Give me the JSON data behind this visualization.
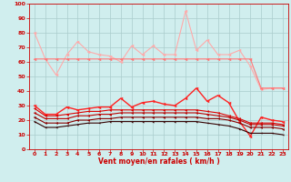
{
  "x": [
    0,
    1,
    2,
    3,
    4,
    5,
    6,
    7,
    8,
    9,
    10,
    11,
    12,
    13,
    14,
    15,
    16,
    17,
    18,
    19,
    20,
    21,
    22,
    23
  ],
  "series": [
    {
      "name": "max_gust",
      "color": "#ffaaaa",
      "linewidth": 0.8,
      "markersize": 2.5,
      "values": [
        80,
        62,
        51,
        65,
        74,
        67,
        65,
        64,
        60,
        71,
        65,
        71,
        65,
        65,
        95,
        68,
        75,
        65,
        65,
        68,
        57,
        41,
        42,
        42
      ]
    },
    {
      "name": "p90_gust",
      "color": "#ff7777",
      "linewidth": 0.8,
      "markersize": 2.5,
      "values": [
        62,
        62,
        62,
        62,
        62,
        62,
        62,
        62,
        62,
        62,
        62,
        62,
        62,
        62,
        62,
        62,
        62,
        62,
        62,
        62,
        62,
        42,
        42,
        42
      ]
    },
    {
      "name": "mean_gust",
      "color": "#ff2222",
      "linewidth": 1.0,
      "markersize": 2.5,
      "values": [
        30,
        24,
        24,
        29,
        27,
        28,
        29,
        29,
        35,
        29,
        32,
        33,
        31,
        30,
        35,
        42,
        33,
        37,
        32,
        19,
        9,
        22,
        20,
        19
      ]
    },
    {
      "name": "p90_wind",
      "color": "#dd0000",
      "linewidth": 0.8,
      "markersize": 2.0,
      "values": [
        28,
        23,
        23,
        24,
        25,
        26,
        26,
        27,
        27,
        27,
        27,
        27,
        27,
        27,
        27,
        27,
        26,
        25,
        23,
        21,
        18,
        18,
        18,
        17
      ]
    },
    {
      "name": "mean_wind",
      "color": "#bb0000",
      "linewidth": 0.8,
      "markersize": 2.0,
      "values": [
        25,
        21,
        21,
        21,
        23,
        23,
        24,
        24,
        25,
        25,
        25,
        25,
        25,
        25,
        25,
        25,
        24,
        23,
        22,
        20,
        17,
        17,
        17,
        16
      ]
    },
    {
      "name": "p10_wind",
      "color": "#880000",
      "linewidth": 0.8,
      "markersize": 2.0,
      "values": [
        22,
        18,
        18,
        18,
        20,
        20,
        21,
        21,
        22,
        22,
        22,
        22,
        22,
        22,
        22,
        22,
        21,
        21,
        20,
        18,
        15,
        15,
        15,
        14
      ]
    },
    {
      "name": "min_wind",
      "color": "#330000",
      "linewidth": 0.8,
      "markersize": 1.5,
      "values": [
        19,
        15,
        15,
        16,
        17,
        18,
        18,
        19,
        19,
        19,
        19,
        19,
        19,
        19,
        19,
        19,
        18,
        17,
        16,
        14,
        11,
        11,
        11,
        10
      ]
    }
  ],
  "xlabel": "Vent moyen/en rafales ( km/h )",
  "xlim": [
    -0.5,
    23.5
  ],
  "ylim": [
    0,
    100
  ],
  "yticks": [
    0,
    10,
    20,
    30,
    40,
    50,
    60,
    70,
    80,
    90,
    100
  ],
  "xticks": [
    0,
    1,
    2,
    3,
    4,
    5,
    6,
    7,
    8,
    9,
    10,
    11,
    12,
    13,
    14,
    15,
    16,
    17,
    18,
    19,
    20,
    21,
    22,
    23
  ],
  "bg_color": "#d0eeee",
  "grid_color": "#aacccc",
  "tick_color": "#cc0000",
  "label_color": "#cc0000",
  "spine_color": "#cc0000"
}
